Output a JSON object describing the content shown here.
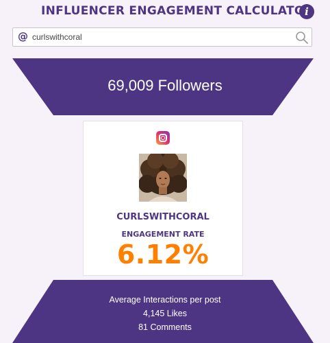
{
  "header": {
    "title": "INFLUENCER ENGAGEMENT CALCULATOR",
    "info_icon": "info-icon"
  },
  "search": {
    "prefix_icon": "at-icon",
    "value": "curlswithcoral",
    "submit_icon": "search-icon"
  },
  "followers": {
    "text": "69,009 Followers"
  },
  "profile": {
    "platform_icon": "instagram-icon",
    "username": "CURLSWITHCORAL",
    "engagement_label": "ENGAGEMENT RATE",
    "engagement_rate": "6.12%"
  },
  "stats": {
    "heading": "Average Interactions per post",
    "likes": "4,145 Likes",
    "comments": "81 Comments"
  },
  "colors": {
    "brand": "#4e3583",
    "accent": "#ff7f00",
    "background": "#f7f2f9"
  }
}
